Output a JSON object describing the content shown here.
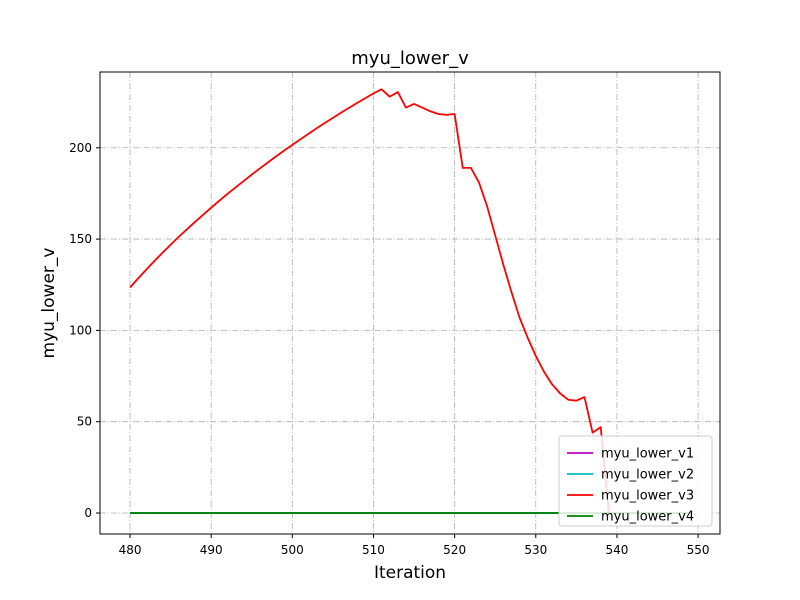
{
  "chart_data": {
    "type": "line",
    "title": "myu_lower_v",
    "xlabel": "Iteration",
    "ylabel": "myu_lower_v",
    "xlim": [
      476.3,
      552.7
    ],
    "ylim": [
      -11.5,
      241.5
    ],
    "xticks": [
      480,
      490,
      500,
      510,
      520,
      530,
      540,
      550
    ],
    "yticks": [
      0,
      50,
      100,
      150,
      200
    ],
    "grid": true,
    "legend_position": "lower-right",
    "x": [
      480,
      481,
      482,
      483,
      484,
      485,
      486,
      487,
      488,
      489,
      490,
      491,
      492,
      493,
      494,
      495,
      496,
      497,
      498,
      499,
      500,
      501,
      502,
      503,
      504,
      505,
      506,
      507,
      508,
      509,
      510,
      511,
      512,
      513,
      514,
      515,
      516,
      517,
      518,
      519,
      520,
      521,
      522,
      523,
      524,
      525,
      526,
      527,
      528,
      529,
      530,
      531,
      532,
      533,
      534,
      535,
      536,
      537,
      538,
      539,
      540,
      541,
      542,
      543,
      544,
      545,
      546,
      547,
      548,
      549
    ],
    "series": [
      {
        "name": "myu_lower_v1",
        "color": "#bf00bf",
        "values": [
          0,
          0,
          0,
          0,
          0,
          0,
          0,
          0,
          0,
          0,
          0,
          0,
          0,
          0,
          0,
          0,
          0,
          0,
          0,
          0,
          0,
          0,
          0,
          0,
          0,
          0,
          0,
          0,
          0,
          0,
          0,
          0,
          0,
          0,
          0,
          0,
          0,
          0,
          0,
          0,
          0,
          0,
          0,
          0,
          0,
          0,
          0,
          0,
          0,
          0,
          0,
          0,
          0,
          0,
          0,
          0,
          0,
          0,
          0,
          0,
          0,
          0,
          0,
          0,
          0,
          0,
          0,
          0,
          0,
          0
        ]
      },
      {
        "name": "myu_lower_v2",
        "color": "#00bfbf",
        "values": [
          0,
          0,
          0,
          0,
          0,
          0,
          0,
          0,
          0,
          0,
          0,
          0,
          0,
          0,
          0,
          0,
          0,
          0,
          0,
          0,
          0,
          0,
          0,
          0,
          0,
          0,
          0,
          0,
          0,
          0,
          0,
          0,
          0,
          0,
          0,
          0,
          0,
          0,
          0,
          0,
          0,
          0,
          0,
          0,
          0,
          0,
          0,
          0,
          0,
          0,
          0,
          0,
          0,
          0,
          0,
          0,
          0,
          0,
          0,
          0,
          0,
          0,
          0,
          0,
          0,
          0,
          0,
          0,
          0,
          0
        ]
      },
      {
        "name": "myu_lower_v3",
        "color": "#ff0000",
        "values": [
          123.5,
          128.5,
          133.3,
          138.0,
          142.5,
          146.9,
          151.2,
          155.3,
          159.4,
          163.3,
          167.2,
          171.0,
          174.7,
          178.3,
          181.8,
          185.3,
          188.7,
          192.0,
          195.3,
          198.5,
          201.6,
          204.7,
          207.7,
          210.7,
          213.6,
          216.4,
          219.2,
          221.9,
          224.6,
          227.2,
          229.8,
          232.0,
          228.0,
          230.5,
          222.0,
          224.0,
          222.0,
          220.0,
          218.5,
          218.0,
          218.5,
          189.0,
          189.0,
          181.0,
          168.0,
          152.0,
          136.0,
          121.0,
          107.0,
          96.0,
          86.0,
          77.5,
          70.5,
          65.5,
          62.0,
          61.5,
          63.5,
          44.0,
          47.0,
          0,
          0,
          0,
          0,
          0,
          0,
          0,
          0,
          0,
          0,
          0
        ]
      },
      {
        "name": "myu_lower_v4",
        "color": "#008000",
        "values": [
          0,
          0,
          0,
          0,
          0,
          0,
          0,
          0,
          0,
          0,
          0,
          0,
          0,
          0,
          0,
          0,
          0,
          0,
          0,
          0,
          0,
          0,
          0,
          0,
          0,
          0,
          0,
          0,
          0,
          0,
          0,
          0,
          0,
          0,
          0,
          0,
          0,
          0,
          0,
          0,
          0,
          0,
          0,
          0,
          0,
          0,
          0,
          0,
          0,
          0,
          0,
          0,
          0,
          0,
          0,
          0,
          0,
          0,
          0,
          0,
          0,
          0,
          0,
          0,
          0,
          0,
          0,
          0,
          0,
          0
        ]
      }
    ]
  }
}
